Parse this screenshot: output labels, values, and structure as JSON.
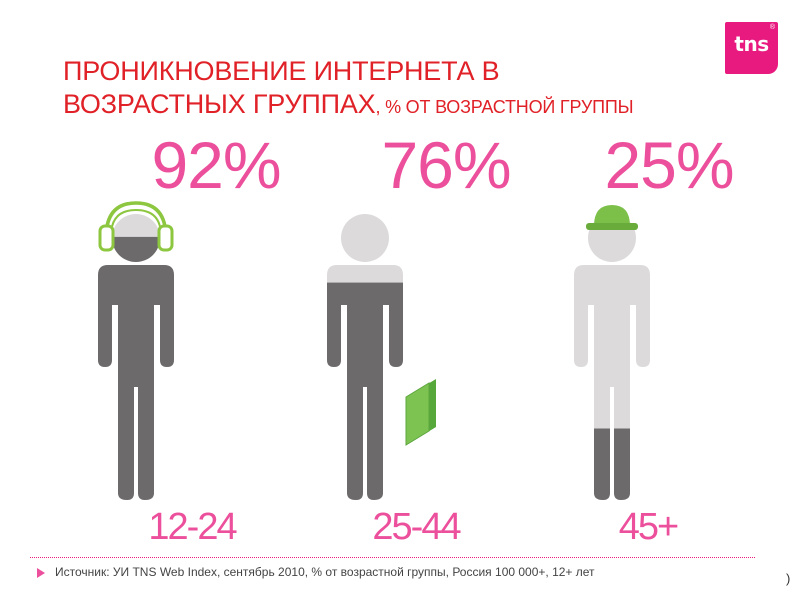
{
  "logo": {
    "text": "tns",
    "tm": "®"
  },
  "title": {
    "line1": "ПРОНИКНОВЕНИЕ ИНТЕРНЕТА В",
    "line2": "ВОЗРАСТНЫХ ГРУППАХ",
    "subtitle": ", % ОТ ВОЗРАСТНОЙ ГРУППЫ"
  },
  "colors": {
    "accent": "#ec4f9b",
    "title": "#e02127",
    "online": "#6c6a6b",
    "offline": "#dcdadb",
    "headphones": "#8dc63f",
    "folder": "#6abd45",
    "helmet": "#7cc04a"
  },
  "icons": [
    "headphones-icon",
    "folder-icon",
    "helmet-icon"
  ],
  "chart_data": {
    "type": "pictogram",
    "title": "ПРОНИКНОВЕНИЕ ИНТЕРНЕТА В ВОЗРАСТНЫХ ГРУППАХ, % ОТ ВОЗРАСТНОЙ ГРУППЫ",
    "categories": [
      "12-24",
      "25-44",
      "45+"
    ],
    "values": [
      92,
      76,
      25
    ],
    "value_labels": [
      "92%",
      "76%",
      "25%"
    ],
    "unit": "%",
    "ylim": [
      0,
      100
    ]
  },
  "source": {
    "text": "Источник: УИ TNS Web Index, сентябрь 2010, % от возрастной группы, Россия 100 000+, 12+ лет",
    "extra": ")"
  }
}
